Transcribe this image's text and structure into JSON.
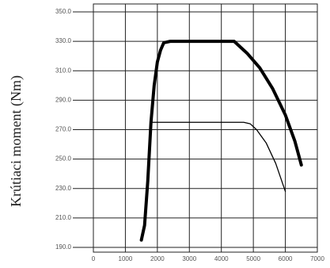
{
  "chart_data": {
    "type": "line",
    "ylabel": "Krútiaci moment (Nm)",
    "xlim": [
      0,
      7000
    ],
    "xticks": [
      0,
      1000,
      2000,
      3000,
      4000,
      5000,
      6000,
      7000
    ],
    "ylim": [
      190,
      350
    ],
    "yticks": [
      {
        "value": 190,
        "label": "190.0"
      },
      {
        "value": 210,
        "label": "210.0"
      },
      {
        "value": 230,
        "label": "230.0"
      },
      {
        "value": 250,
        "label": "250.0"
      },
      {
        "value": 270,
        "label": "270.0"
      },
      {
        "value": 290,
        "label": "290.0"
      },
      {
        "value": 310,
        "label": "310.0"
      },
      {
        "value": 330,
        "label": "330.0"
      },
      {
        "value": 350,
        "label": "350.0"
      }
    ],
    "grid": true,
    "series": [
      {
        "color": "#000000",
        "width": 4,
        "x": [
          1500,
          1600,
          1700,
          1800,
          1900,
          2000,
          2100,
          2200,
          2400,
          4400,
          4800,
          5200,
          5600,
          6000,
          6300,
          6500
        ],
        "values": [
          195,
          205,
          235,
          275,
          300,
          316,
          324,
          329,
          330,
          330,
          322,
          312,
          298,
          280,
          262,
          246
        ]
      },
      {
        "color": "#000000",
        "width": 1.3,
        "x": [
          1800,
          2000,
          4700,
          4900,
          5100,
          5400,
          5700,
          6000
        ],
        "values": [
          275,
          275,
          275,
          274,
          270,
          261,
          247,
          228
        ]
      }
    ]
  }
}
